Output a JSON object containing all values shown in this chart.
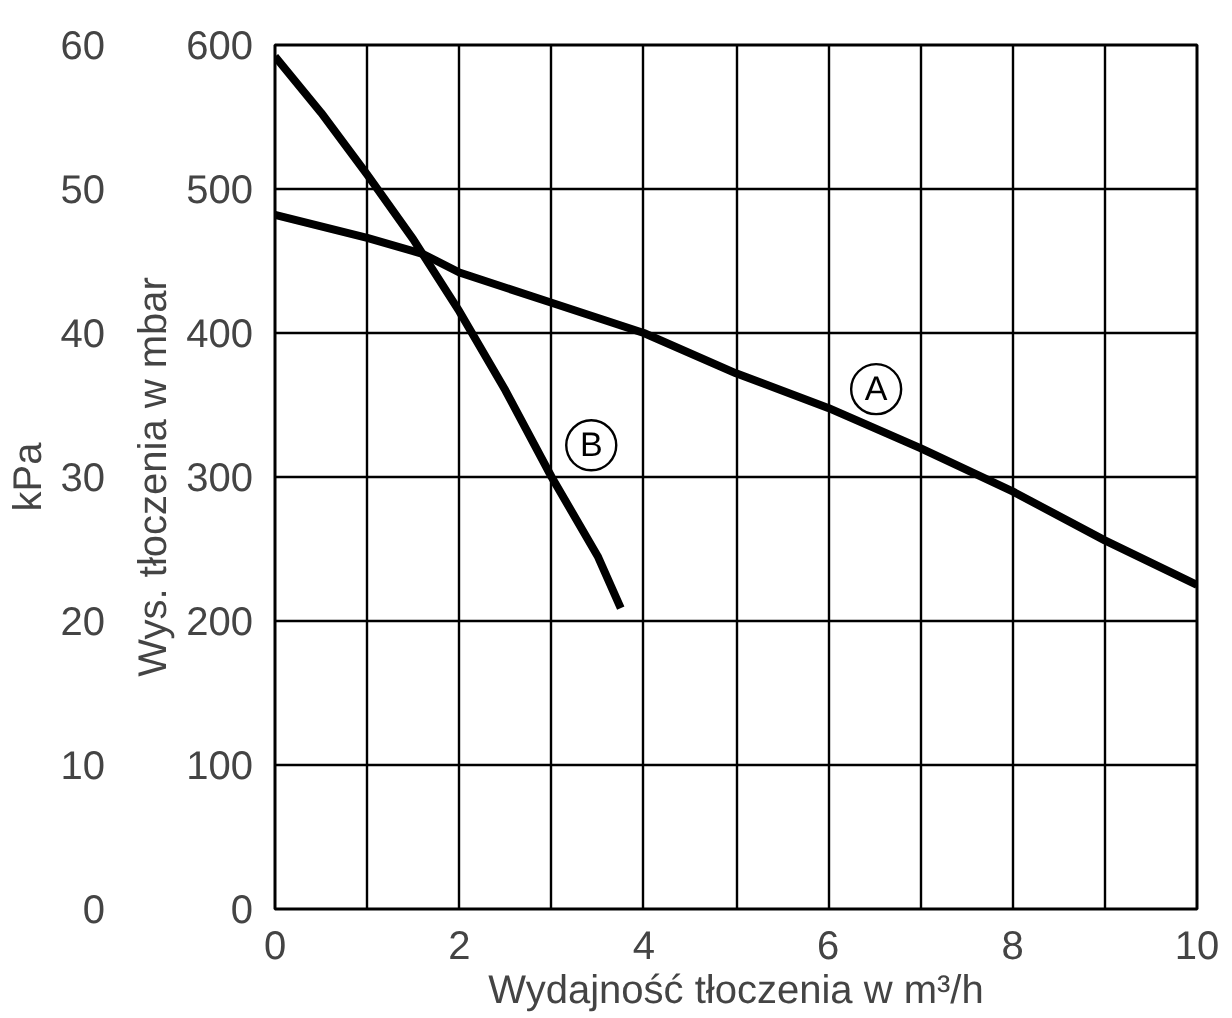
{
  "chart_data": {
    "type": "line",
    "xlabel": "Wydajność tłoczenia w m³/h",
    "ylabel": "Wys. tłoczenia w mbar",
    "y2label": "kPa",
    "xlim": [
      0,
      10
    ],
    "xticks": [
      0,
      {
        "value": 1,
        "label": null
      },
      2,
      {
        "value": 3,
        "label": null
      },
      4,
      {
        "value": 5,
        "label": null
      },
      6,
      {
        "value": 7,
        "label": null
      },
      8,
      {
        "value": 9,
        "label": null
      },
      10
    ],
    "ylim": [
      0,
      600
    ],
    "yticks": [
      0,
      100,
      200,
      300,
      400,
      500,
      600
    ],
    "y2lim": [
      0,
      60
    ],
    "y2ticks": [
      0,
      10,
      20,
      30,
      40,
      50,
      60
    ],
    "grid": true,
    "line_style": "solid",
    "series": [
      {
        "color": "#000000",
        "x": [
          0,
          1,
          1.6,
          2,
          3,
          4,
          5,
          6,
          7,
          8,
          9,
          10
        ],
        "values": [
          482,
          466,
          455,
          442,
          421,
          400,
          372,
          348,
          320,
          290,
          256,
          225
        ]
      },
      {
        "color": "#000000",
        "x": [
          0,
          0.5,
          1,
          1.5,
          2,
          2.5,
          3,
          3.5,
          3.75
        ],
        "values": [
          592,
          553,
          510,
          465,
          415,
          360,
          300,
          245,
          209
        ]
      }
    ],
    "annotations": [
      {
        "text": "A",
        "x": 6.52,
        "y": 361
      },
      {
        "text": "B",
        "x": 3.43,
        "y": 322
      }
    ]
  }
}
